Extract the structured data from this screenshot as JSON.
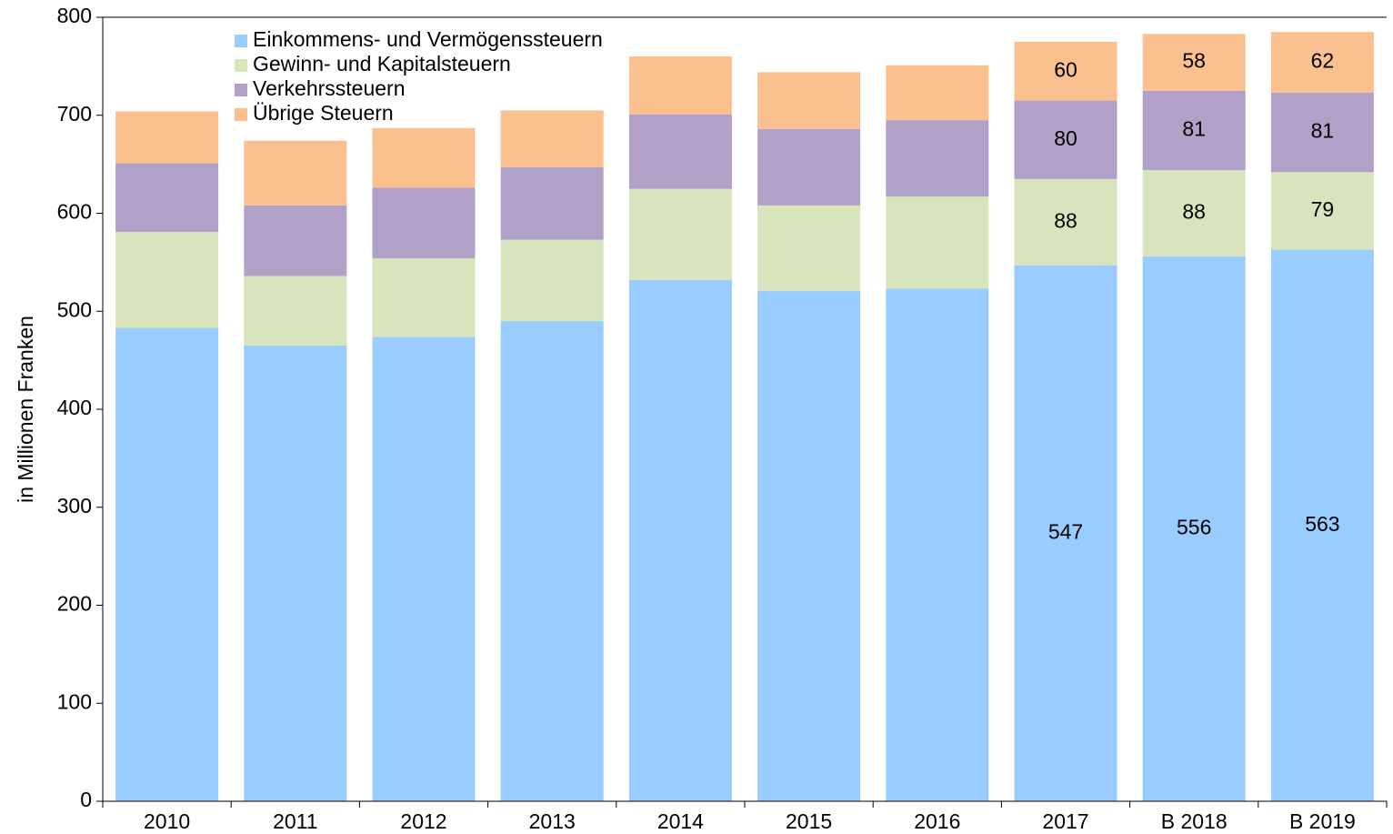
{
  "chart_data": {
    "type": "stacked_bar",
    "y_label": "in Millionen Franken",
    "categories": [
      "2010",
      "2011",
      "2012",
      "2013",
      "2014",
      "2015",
      "2016",
      "2017",
      "B 2018",
      "B 2019"
    ],
    "series": [
      {
        "name": "Einkommens- und Vermögenssteuern",
        "color": "#99ccff",
        "values": [
          483,
          465,
          474,
          490,
          532,
          521,
          523,
          547,
          556,
          563
        ],
        "value_labels": [
          null,
          null,
          null,
          null,
          null,
          null,
          null,
          "547",
          "556",
          "563"
        ]
      },
      {
        "name": "Gewinn- und Kapitalsteuern",
        "color": "#d8e4bc",
        "values": [
          98,
          71,
          80,
          83,
          93,
          87,
          94,
          88,
          88,
          79
        ],
        "value_labels": [
          null,
          null,
          null,
          null,
          null,
          null,
          null,
          "88",
          "88",
          "79"
        ]
      },
      {
        "name": "Verkehrssteuern",
        "color": "#b1a0c7",
        "values": [
          70,
          72,
          72,
          74,
          76,
          78,
          78,
          80,
          81,
          81
        ],
        "value_labels": [
          null,
          null,
          null,
          null,
          null,
          null,
          null,
          "80",
          "81",
          "81"
        ]
      },
      {
        "name": "Übrige Steuern",
        "color": "#fac090",
        "values": [
          53,
          66,
          61,
          58,
          59,
          58,
          56,
          60,
          58,
          62
        ],
        "value_labels": [
          null,
          null,
          null,
          null,
          null,
          null,
          null,
          "60",
          "58",
          "62"
        ]
      }
    ],
    "ylim": [
      0,
      800
    ],
    "yticks": [
      0,
      100,
      200,
      300,
      400,
      500,
      600,
      700,
      800
    ],
    "legend": "top-left",
    "grid": false
  }
}
